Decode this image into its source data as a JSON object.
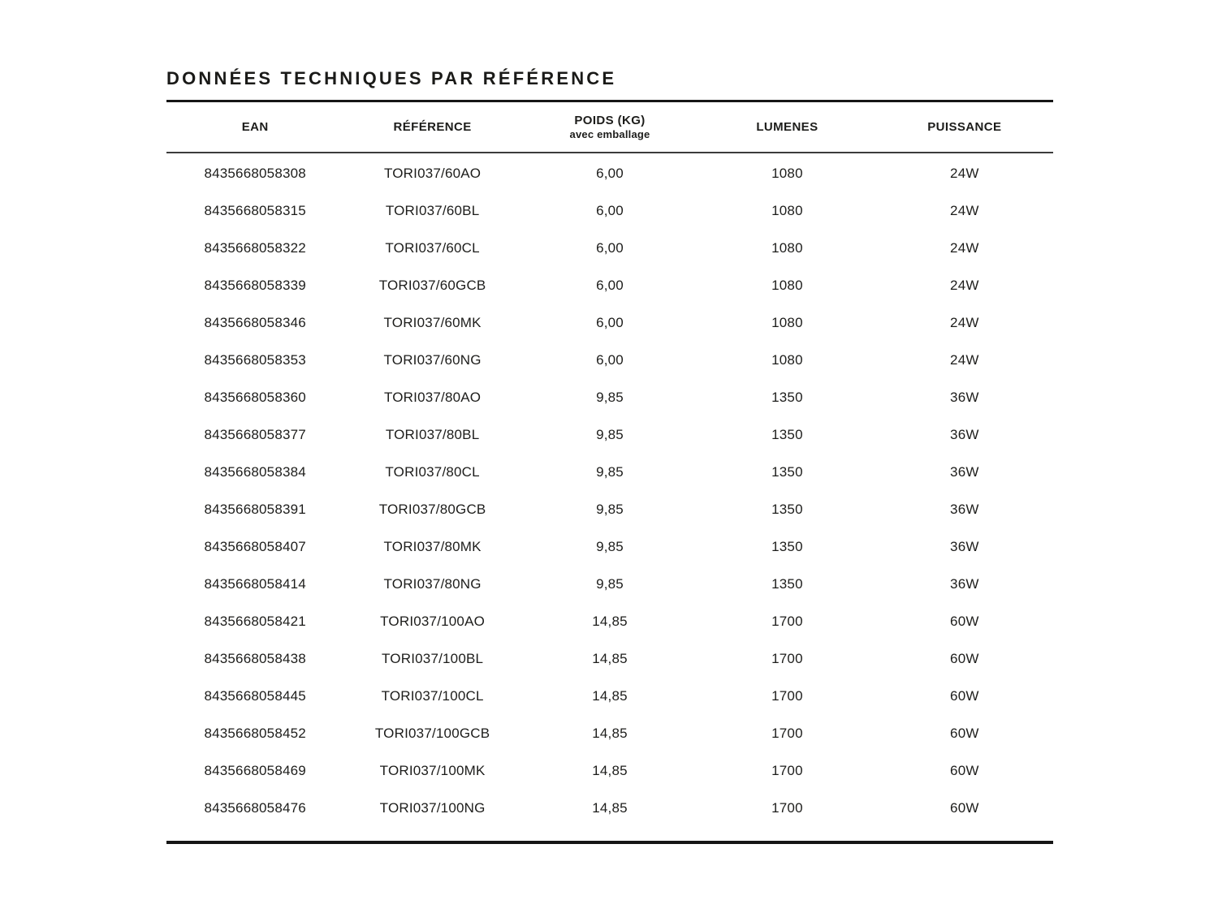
{
  "page": {
    "title": "DONNÉES TECHNIQUES PAR RÉFÉRENCE"
  },
  "colors": {
    "background": "#ffffff",
    "text": "#1d1d1b",
    "rule_heavy": "#161616",
    "rule_light": "#3c3c3c"
  },
  "table": {
    "columns": [
      {
        "key": "ean",
        "label": "EAN"
      },
      {
        "key": "reference",
        "label": "RÉFÉRENCE"
      },
      {
        "key": "poids",
        "label": "POIDS (KG)",
        "sublabel": "avec emballage"
      },
      {
        "key": "lumenes",
        "label": "LUMENES"
      },
      {
        "key": "puissance",
        "label": "PUISSANCE"
      }
    ],
    "rows": [
      [
        "8435668058308",
        "TORI037/60AO",
        "6,00",
        "1080",
        "24W"
      ],
      [
        "8435668058315",
        "TORI037/60BL",
        "6,00",
        "1080",
        "24W"
      ],
      [
        "8435668058322",
        "TORI037/60CL",
        "6,00",
        "1080",
        "24W"
      ],
      [
        "8435668058339",
        "TORI037/60GCB",
        "6,00",
        "1080",
        "24W"
      ],
      [
        "8435668058346",
        "TORI037/60MK",
        "6,00",
        "1080",
        "24W"
      ],
      [
        "8435668058353",
        "TORI037/60NG",
        "6,00",
        "1080",
        "24W"
      ],
      [
        "8435668058360",
        "TORI037/80AO",
        "9,85",
        "1350",
        "36W"
      ],
      [
        "8435668058377",
        "TORI037/80BL",
        "9,85",
        "1350",
        "36W"
      ],
      [
        "8435668058384",
        "TORI037/80CL",
        "9,85",
        "1350",
        "36W"
      ],
      [
        "8435668058391",
        "TORI037/80GCB",
        "9,85",
        "1350",
        "36W"
      ],
      [
        "8435668058407",
        "TORI037/80MK",
        "9,85",
        "1350",
        "36W"
      ],
      [
        "8435668058414",
        "TORI037/80NG",
        "9,85",
        "1350",
        "36W"
      ],
      [
        "8435668058421",
        "TORI037/100AO",
        "14,85",
        "1700",
        "60W"
      ],
      [
        "8435668058438",
        "TORI037/100BL",
        "14,85",
        "1700",
        "60W"
      ],
      [
        "8435668058445",
        "TORI037/100CL",
        "14,85",
        "1700",
        "60W"
      ],
      [
        "8435668058452",
        "TORI037/100GCB",
        "14,85",
        "1700",
        "60W"
      ],
      [
        "8435668058469",
        "TORI037/100MK",
        "14,85",
        "1700",
        "60W"
      ],
      [
        "8435668058476",
        "TORI037/100NG",
        "14,85",
        "1700",
        "60W"
      ]
    ]
  }
}
